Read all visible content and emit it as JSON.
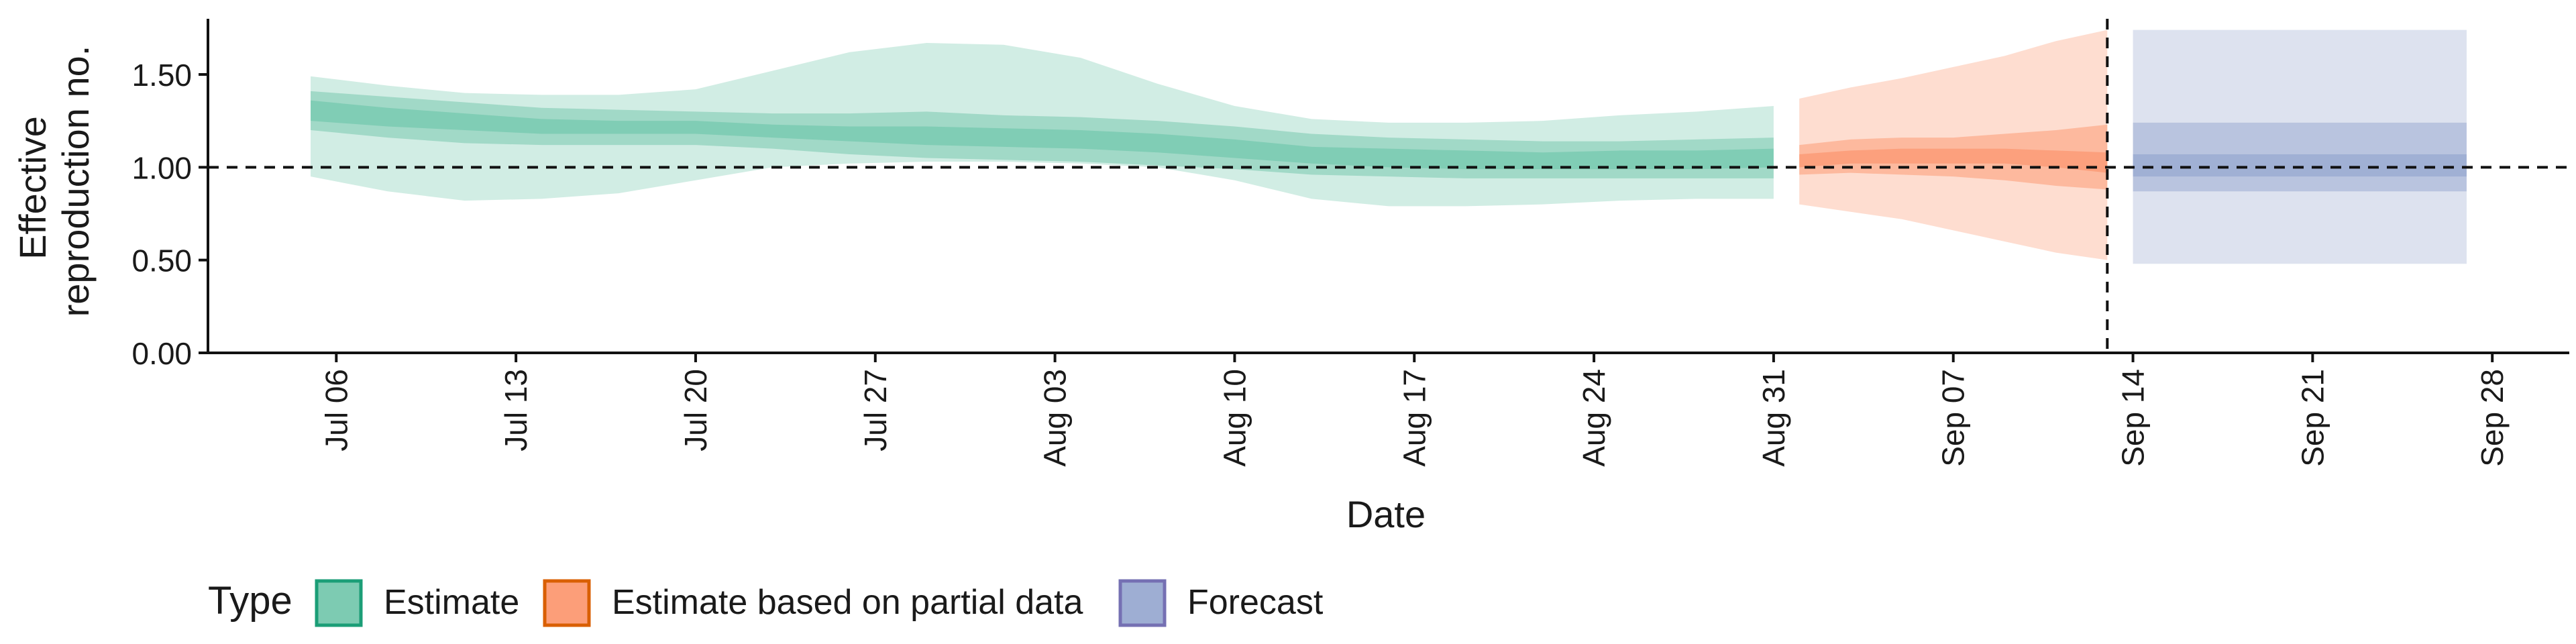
{
  "chart_data": {
    "type": "area",
    "xlabel": "Date",
    "ylabel_lines": [
      "Effective",
      "reproduction no."
    ],
    "ylim": [
      0,
      1.8
    ],
    "y_ticks": [
      0.0,
      0.5,
      1.0,
      1.5
    ],
    "y_tick_labels": [
      "0.00",
      "0.50",
      "1.00",
      "1.50"
    ],
    "x_range": [
      "2020-07-01",
      "2020-10-01"
    ],
    "x_ticks": [
      "2020-07-06",
      "2020-07-13",
      "2020-07-20",
      "2020-07-27",
      "2020-08-03",
      "2020-08-10",
      "2020-08-17",
      "2020-08-24",
      "2020-08-31",
      "2020-09-07",
      "2020-09-14",
      "2020-09-21",
      "2020-09-28"
    ],
    "x_tick_labels": [
      "Jul 06",
      "Jul 13",
      "Jul 20",
      "Jul 27",
      "Aug 03",
      "Aug 10",
      "Aug 17",
      "Aug 24",
      "Aug 31",
      "Sep 07",
      "Sep 14",
      "Sep 21",
      "Sep 28"
    ],
    "reference_line_y": 1.0,
    "vertical_line_x": "2020-09-13",
    "legend_title": "Type",
    "legend_position": "bottom-left",
    "series": [
      {
        "name": "Estimate",
        "color": "#66c2a5",
        "stroke": "#1b9e77",
        "dates": [
          "2020-07-05",
          "2020-07-08",
          "2020-07-11",
          "2020-07-14",
          "2020-07-17",
          "2020-07-20",
          "2020-07-23",
          "2020-07-26",
          "2020-07-29",
          "2020-08-01",
          "2020-08-04",
          "2020-08-07",
          "2020-08-10",
          "2020-08-13",
          "2020-08-16",
          "2020-08-19",
          "2020-08-22",
          "2020-08-25",
          "2020-08-28",
          "2020-08-31"
        ],
        "median": [
          1.3,
          1.27,
          1.24,
          1.22,
          1.21,
          1.21,
          1.2,
          1.18,
          1.17,
          1.16,
          1.15,
          1.13,
          1.1,
          1.07,
          1.05,
          1.04,
          1.03,
          1.03,
          1.04,
          1.05
        ],
        "lower_20": [
          1.25,
          1.22,
          1.2,
          1.18,
          1.18,
          1.18,
          1.16,
          1.14,
          1.12,
          1.11,
          1.1,
          1.08,
          1.05,
          1.02,
          1.0,
          0.99,
          0.99,
          0.99,
          0.99,
          1.0
        ],
        "upper_20": [
          1.36,
          1.32,
          1.29,
          1.26,
          1.25,
          1.25,
          1.23,
          1.22,
          1.22,
          1.21,
          1.2,
          1.18,
          1.15,
          1.11,
          1.1,
          1.09,
          1.08,
          1.09,
          1.09,
          1.1
        ],
        "lower_50": [
          1.2,
          1.16,
          1.13,
          1.12,
          1.12,
          1.12,
          1.1,
          1.07,
          1.05,
          1.04,
          1.03,
          1.01,
          0.99,
          0.96,
          0.95,
          0.94,
          0.94,
          0.94,
          0.94,
          0.94
        ],
        "upper_50": [
          1.41,
          1.38,
          1.35,
          1.32,
          1.31,
          1.3,
          1.29,
          1.29,
          1.3,
          1.28,
          1.27,
          1.25,
          1.22,
          1.18,
          1.16,
          1.15,
          1.14,
          1.14,
          1.15,
          1.16
        ],
        "lower_90": [
          0.95,
          0.87,
          0.82,
          0.83,
          0.86,
          0.93,
          1.0,
          1.02,
          1.03,
          1.03,
          1.02,
          1.0,
          0.93,
          0.83,
          0.79,
          0.79,
          0.8,
          0.82,
          0.83,
          0.83
        ],
        "upper_90": [
          1.49,
          1.44,
          1.4,
          1.39,
          1.39,
          1.42,
          1.52,
          1.62,
          1.67,
          1.66,
          1.59,
          1.45,
          1.33,
          1.26,
          1.24,
          1.24,
          1.25,
          1.28,
          1.3,
          1.33
        ]
      },
      {
        "name": "Estimate based on partial data",
        "color": "#fc8d62",
        "stroke": "#d95f02",
        "dates": [
          "2020-09-01",
          "2020-09-03",
          "2020-09-05",
          "2020-09-07",
          "2020-09-09",
          "2020-09-11",
          "2020-09-13"
        ],
        "median": [
          1.03,
          1.05,
          1.06,
          1.06,
          1.05,
          1.04,
          1.02
        ],
        "lower_20": [
          1.0,
          1.02,
          1.02,
          1.02,
          1.02,
          1.0,
          0.97
        ],
        "upper_20": [
          1.07,
          1.09,
          1.1,
          1.1,
          1.1,
          1.09,
          1.08
        ],
        "lower_50": [
          0.96,
          0.97,
          0.96,
          0.95,
          0.93,
          0.9,
          0.88
        ],
        "upper_50": [
          1.12,
          1.15,
          1.16,
          1.16,
          1.18,
          1.2,
          1.23
        ],
        "lower_90": [
          0.8,
          0.76,
          0.72,
          0.66,
          0.6,
          0.54,
          0.5
        ],
        "upper_90": [
          1.37,
          1.43,
          1.48,
          1.54,
          1.6,
          1.68,
          1.74
        ]
      },
      {
        "name": "Forecast",
        "color": "#8da0cb",
        "stroke": "#7570b3",
        "dates": [
          "2020-09-14",
          "2020-09-27"
        ],
        "median": [
          1.0,
          1.0
        ],
        "lower_20": [
          0.95,
          0.95
        ],
        "upper_20": [
          1.07,
          1.07
        ],
        "lower_50": [
          0.87,
          0.87
        ],
        "upper_50": [
          1.24,
          1.24
        ],
        "lower_90": [
          0.48,
          0.48
        ],
        "upper_90": [
          1.74,
          1.74
        ]
      }
    ]
  }
}
